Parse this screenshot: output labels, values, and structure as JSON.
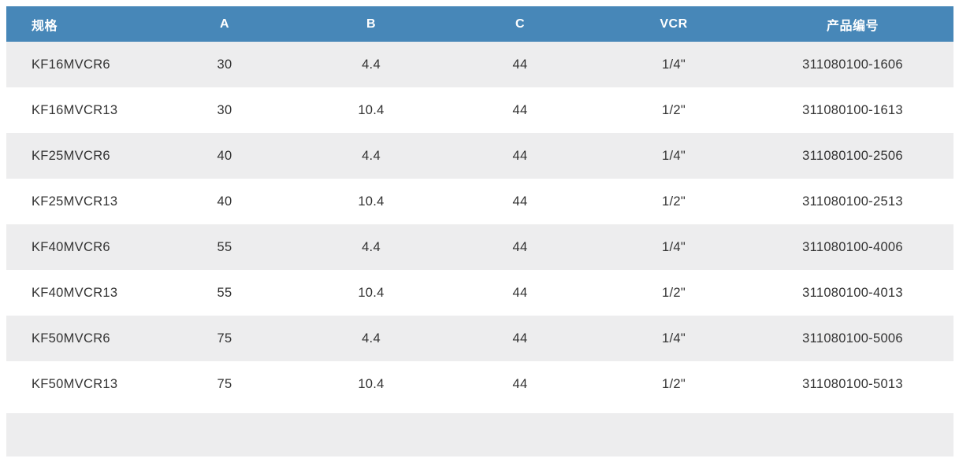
{
  "colors": {
    "header_bg": "#4787B8",
    "header_text": "#FFFFFF",
    "stripe_bg": "#EDEDEE",
    "row_bg": "#FFFFFF",
    "body_text": "#333333"
  },
  "table": {
    "columns": [
      {
        "key": "spec",
        "label": "规格"
      },
      {
        "key": "a",
        "label": "A"
      },
      {
        "key": "b",
        "label": "B"
      },
      {
        "key": "c",
        "label": "C"
      },
      {
        "key": "vcr",
        "label": "VCR"
      },
      {
        "key": "part_number",
        "label": "产品编号"
      }
    ],
    "rows": [
      [
        "KF16MVCR6",
        "30",
        "4.4",
        "44",
        "1/4\"",
        "311080100-1606"
      ],
      [
        "KF16MVCR13",
        "30",
        "10.4",
        "44",
        "1/2\"",
        "311080100-1613"
      ],
      [
        "KF25MVCR6",
        "40",
        "4.4",
        "44",
        "1/4\"",
        "311080100-2506"
      ],
      [
        "KF25MVCR13",
        "40",
        "10.4",
        "44",
        "1/2\"",
        "311080100-2513"
      ],
      [
        "KF40MVCR6",
        "55",
        "4.4",
        "44",
        "1/4\"",
        "311080100-4006"
      ],
      [
        "KF40MVCR13",
        "55",
        "10.4",
        "44",
        "1/2\"",
        "311080100-4013"
      ],
      [
        "KF50MVCR6",
        "75",
        "4.4",
        "44",
        "1/4\"",
        "311080100-5006"
      ],
      [
        "KF50MVCR13",
        "75",
        "10.4",
        "44",
        "1/2\"",
        "311080100-5013"
      ]
    ]
  }
}
